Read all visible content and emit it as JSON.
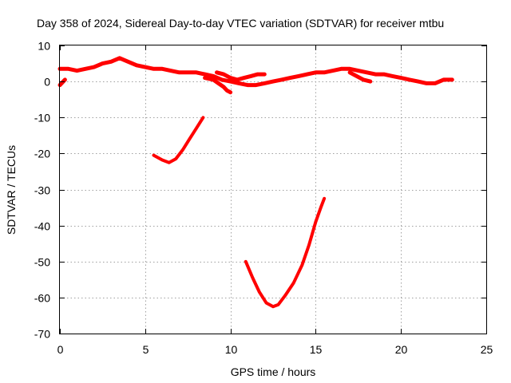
{
  "chart_data": {
    "type": "line",
    "title": "Day 358 of 2024, Sidereal Day-to-day VTEC variation (SDTVAR) for receiver mtbu",
    "xlabel": "GPS time / hours",
    "ylabel": "SDTVAR / TECUs",
    "xlim": [
      0,
      25
    ],
    "ylim": [
      -70,
      10
    ],
    "xticks": [
      0,
      5,
      10,
      15,
      20,
      25
    ],
    "yticks": [
      10,
      0,
      -10,
      -20,
      -30,
      -40,
      -50,
      -60,
      -70
    ],
    "grid": true,
    "colors": {
      "series": "#ff0000",
      "axis": "#000000",
      "grid": "#a0a0a0"
    },
    "series": [
      {
        "name": "arc-start",
        "x": [
          0.0,
          0.3
        ],
        "y": [
          -1.0,
          0.5
        ]
      },
      {
        "name": "arc-main-band",
        "x": [
          0.0,
          0.5,
          1.0,
          1.5,
          2.0,
          2.5,
          3.0,
          3.5,
          4.0,
          4.5,
          5.0,
          5.5,
          6.0,
          6.5,
          7.0,
          7.5,
          8.0,
          8.5,
          9.0,
          9.5,
          10.0,
          10.5,
          11.0,
          11.5,
          12.0,
          12.5,
          13.0,
          13.5,
          14.0,
          14.5,
          15.0,
          15.5,
          16.0,
          16.5,
          17.0,
          17.5,
          18.0,
          18.5,
          19.0,
          19.5,
          20.0,
          20.5,
          21.0,
          21.5,
          22.0,
          22.5,
          23.0
        ],
        "y": [
          3.5,
          3.5,
          3.0,
          3.5,
          4.0,
          5.0,
          5.5,
          6.5,
          5.5,
          4.5,
          4.0,
          3.5,
          3.5,
          3.0,
          2.5,
          2.5,
          2.5,
          2.0,
          1.5,
          0.5,
          0.0,
          -0.5,
          -1.0,
          -1.0,
          -0.5,
          0.0,
          0.5,
          1.0,
          1.5,
          2.0,
          2.5,
          2.5,
          3.0,
          3.5,
          3.5,
          3.0,
          2.5,
          2.0,
          2.0,
          1.5,
          1.0,
          0.5,
          0.0,
          -0.5,
          -0.5,
          0.5,
          0.5
        ]
      },
      {
        "name": "arc-spike-9h",
        "x": [
          8.5,
          9.0,
          9.3,
          9.6,
          9.8,
          10.0
        ],
        "y": [
          1.0,
          0.5,
          -0.5,
          -1.5,
          -2.5,
          -3.0
        ]
      },
      {
        "name": "arc-branch-10h",
        "x": [
          9.2,
          9.6,
          10.0,
          10.4,
          10.8,
          11.2,
          11.6,
          12.0
        ],
        "y": [
          2.5,
          2.0,
          1.0,
          0.5,
          1.0,
          1.5,
          2.0,
          2.0
        ]
      },
      {
        "name": "arc-branch-18h",
        "x": [
          17.0,
          17.4,
          17.8,
          18.2
        ],
        "y": [
          2.5,
          1.5,
          0.5,
          0.0
        ]
      },
      {
        "name": "arc-midday-dip",
        "x": [
          5.5,
          6.0,
          6.4,
          6.8,
          7.2,
          7.6,
          8.0,
          8.4
        ],
        "y": [
          -20.5,
          -21.8,
          -22.5,
          -21.5,
          -19.0,
          -16.0,
          -13.0,
          -10.0
        ]
      },
      {
        "name": "arc-deep-dip",
        "x": [
          10.9,
          11.3,
          11.7,
          12.1,
          12.5,
          12.8,
          13.2,
          13.7,
          14.2,
          14.6,
          15.0,
          15.3,
          15.5
        ],
        "y": [
          -50.0,
          -54.5,
          -58.5,
          -61.5,
          -62.5,
          -62.0,
          -59.5,
          -56.0,
          -51.0,
          -45.5,
          -39.0,
          -35.0,
          -32.5
        ]
      }
    ]
  }
}
